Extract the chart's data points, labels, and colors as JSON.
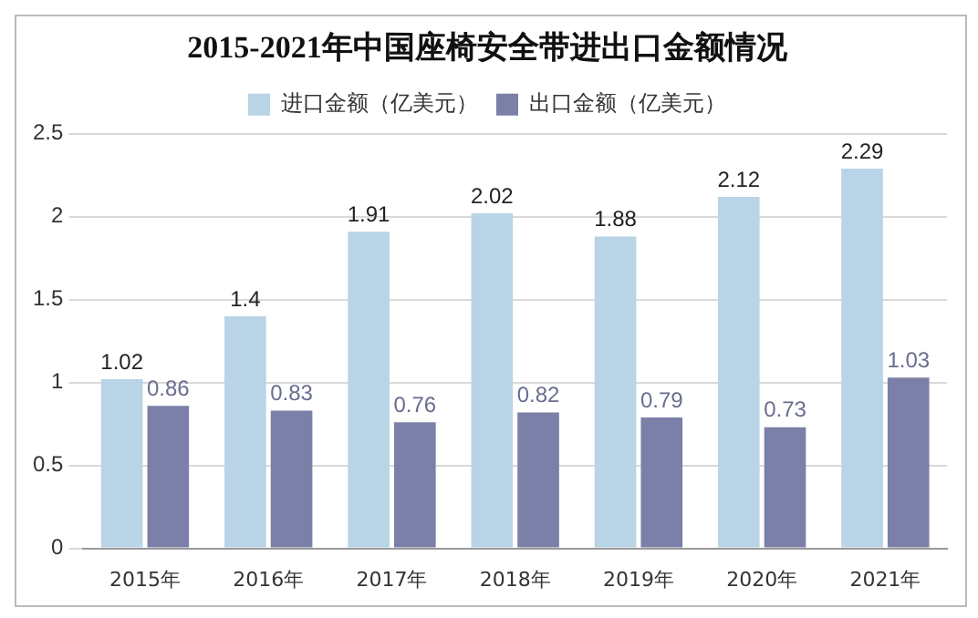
{
  "chart_data": {
    "type": "bar",
    "title": "2015-2021年中国座椅安全带进出口金额情况",
    "categories": [
      "2015年",
      "2016年",
      "2017年",
      "2018年",
      "2019年",
      "2020年",
      "2021年"
    ],
    "series": [
      {
        "name": "进口金额（亿美元）",
        "color": "#b8d4e6",
        "values": [
          1.02,
          1.4,
          1.91,
          2.02,
          1.88,
          2.12,
          2.29
        ]
      },
      {
        "name": "出口金额（亿美元）",
        "color": "#7b80a8",
        "values": [
          0.86,
          0.83,
          0.76,
          0.82,
          0.79,
          0.73,
          1.03
        ]
      }
    ],
    "ylim": [
      0,
      2.5
    ],
    "yticks": [
      0,
      0.5,
      1,
      1.5,
      2,
      2.5
    ],
    "grid": "y",
    "legend": "top",
    "data_labels": true
  }
}
